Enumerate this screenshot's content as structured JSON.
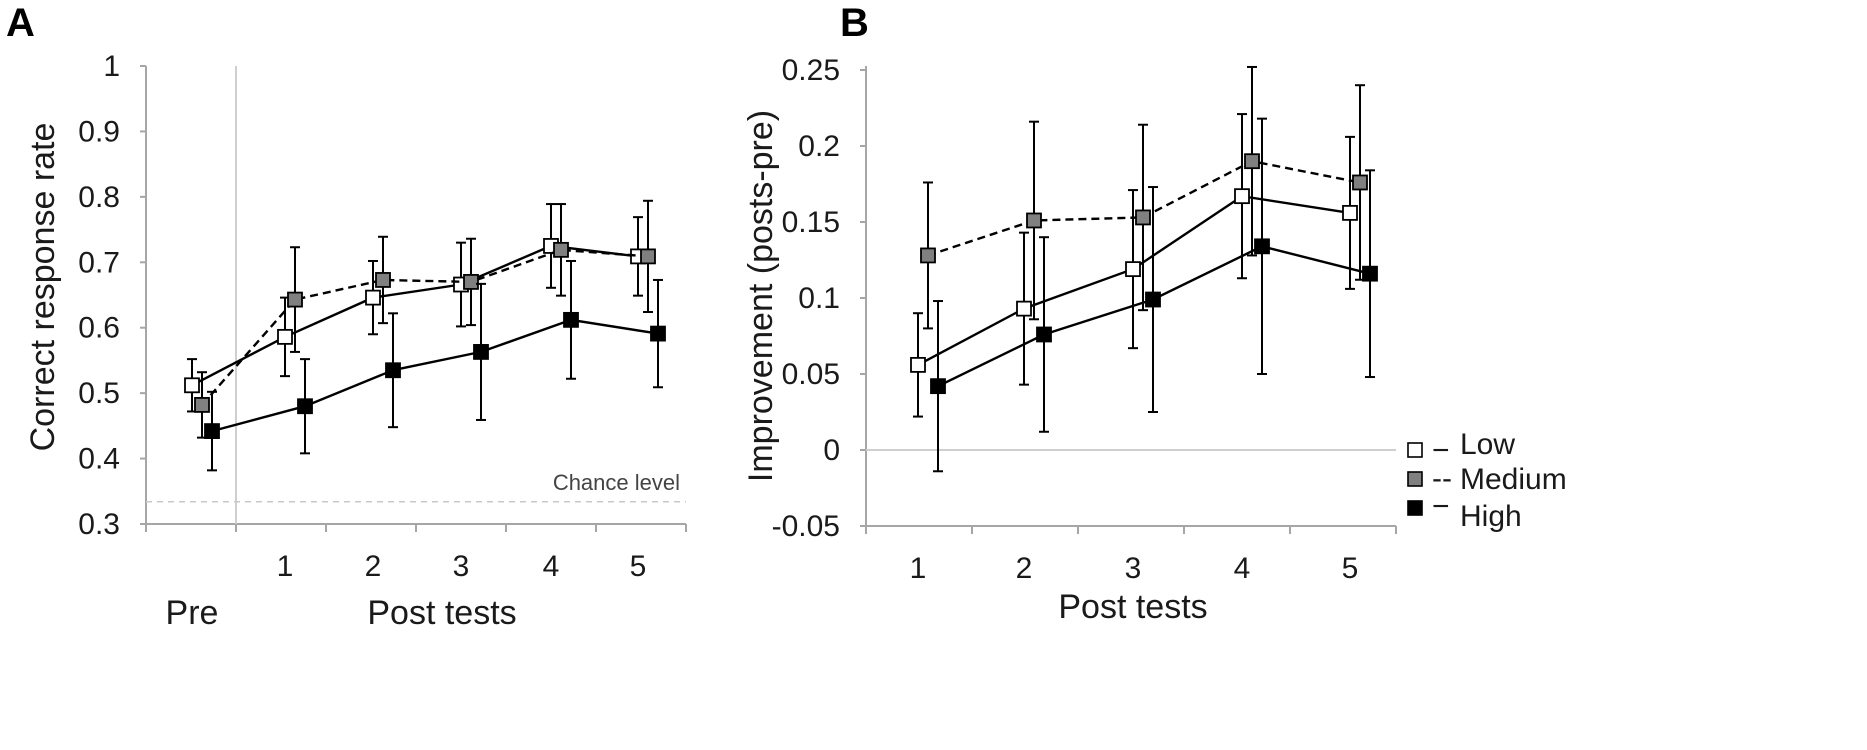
{
  "panel_labels": [
    "A",
    "B"
  ],
  "legend": {
    "entries": [
      {
        "name": "Low",
        "dash": "−",
        "fill": "#ffffff"
      },
      {
        "name": "Medium",
        "dash": "--",
        "fill": "#808080"
      },
      {
        "name": "High",
        "dash": "−",
        "fill": "#000000"
      }
    ]
  },
  "chart_data": [
    {
      "type": "line",
      "panel": "A",
      "title": "",
      "ylabel": "Correct response rate",
      "xlabel": "Post tests",
      "x_categories": [
        "Pre",
        "1",
        "2",
        "3",
        "4",
        "5"
      ],
      "group_labels": {
        "pre": "Pre",
        "post": "Post tests"
      },
      "ylim": [
        0.3,
        1.0
      ],
      "yticks": [
        "0.3",
        "0.4",
        "0.5",
        "0.6",
        "0.7",
        "0.8",
        "0.9",
        "1"
      ],
      "reference_line": {
        "y": 0.334,
        "label": "Chance level"
      },
      "series": [
        {
          "name": "Low",
          "color": "#ffffff",
          "linestyle": "solid",
          "values": [
            0.512,
            0.586,
            0.646,
            0.666,
            0.725,
            0.709
          ],
          "error": [
            0.04,
            0.06,
            0.056,
            0.064,
            0.064,
            0.06
          ]
        },
        {
          "name": "Medium",
          "color": "#808080",
          "linestyle": "dashed",
          "values": [
            0.482,
            0.643,
            0.673,
            0.67,
            0.719,
            0.709
          ],
          "error": [
            0.05,
            0.08,
            0.066,
            0.066,
            0.07,
            0.085
          ]
        },
        {
          "name": "High",
          "color": "#000000",
          "linestyle": "solid",
          "values": [
            0.442,
            0.48,
            0.535,
            0.563,
            0.612,
            0.591
          ],
          "error": [
            0.06,
            0.072,
            0.087,
            0.104,
            0.09,
            0.082
          ]
        }
      ]
    },
    {
      "type": "line",
      "panel": "B",
      "title": "",
      "ylabel": "Improvement (posts-pre)",
      "xlabel": "Post tests",
      "x_categories": [
        "1",
        "2",
        "3",
        "4",
        "5"
      ],
      "ylim": [
        -0.05,
        0.25
      ],
      "yticks": [
        "-0.05",
        "0",
        "0.05",
        "0.1",
        "0.15",
        "0.2",
        "0.25"
      ],
      "series": [
        {
          "name": "Low",
          "color": "#ffffff",
          "linestyle": "solid",
          "values": [
            0.056,
            0.093,
            0.119,
            0.167,
            0.156
          ],
          "error": [
            0.034,
            0.05,
            0.052,
            0.054,
            0.05
          ]
        },
        {
          "name": "Medium",
          "color": "#808080",
          "linestyle": "dashed",
          "values": [
            0.128,
            0.151,
            0.153,
            0.19,
            0.176
          ],
          "error": [
            0.048,
            0.065,
            0.061,
            0.062,
            0.064
          ]
        },
        {
          "name": "High",
          "color": "#000000",
          "linestyle": "solid",
          "values": [
            0.042,
            0.076,
            0.099,
            0.134,
            0.116
          ],
          "error": [
            0.056,
            0.064,
            0.074,
            0.084,
            0.068
          ]
        }
      ]
    }
  ]
}
